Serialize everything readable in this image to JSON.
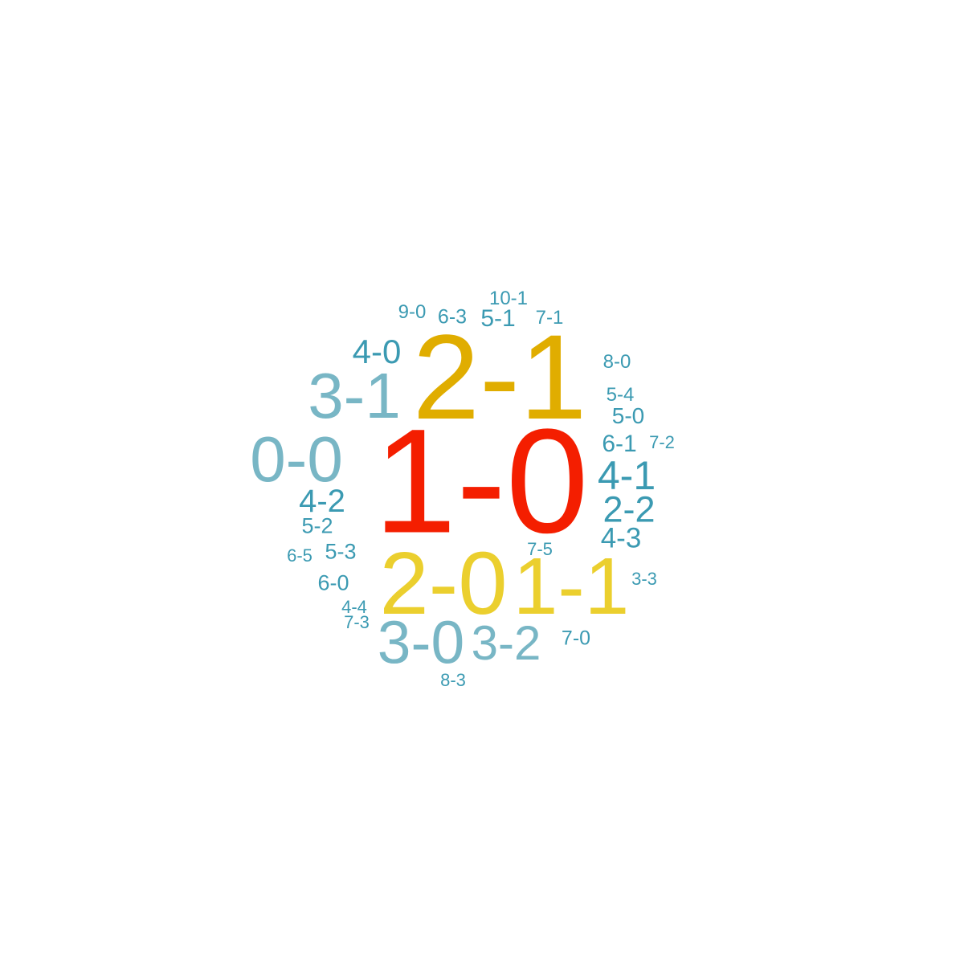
{
  "palette": {
    "red": "#f41e00",
    "gold": "#e0ad00",
    "yellow": "#ebcf2e",
    "light_blue": "#78b6c5",
    "teal": "#3b9ab2"
  },
  "words": [
    {
      "text": "1-0",
      "color": "red"
    },
    {
      "text": "2-1",
      "color": "gold"
    },
    {
      "text": "2-0",
      "color": "yellow"
    },
    {
      "text": "1-1",
      "color": "yellow"
    },
    {
      "text": "3-1",
      "color": "light_blue"
    },
    {
      "text": "0-0",
      "color": "light_blue"
    },
    {
      "text": "3-0",
      "color": "light_blue"
    },
    {
      "text": "3-2",
      "color": "light_blue"
    },
    {
      "text": "4-0",
      "color": "teal"
    },
    {
      "text": "4-1",
      "color": "teal"
    },
    {
      "text": "2-2",
      "color": "teal"
    },
    {
      "text": "4-2",
      "color": "teal"
    },
    {
      "text": "4-3",
      "color": "teal"
    },
    {
      "text": "6-1",
      "color": "teal"
    },
    {
      "text": "5-1",
      "color": "teal"
    },
    {
      "text": "5-0",
      "color": "teal"
    },
    {
      "text": "5-2",
      "color": "teal"
    },
    {
      "text": "5-3",
      "color": "teal"
    },
    {
      "text": "6-0",
      "color": "teal"
    },
    {
      "text": "7-0",
      "color": "teal"
    },
    {
      "text": "6-3",
      "color": "teal"
    },
    {
      "text": "5-4",
      "color": "teal"
    },
    {
      "text": "9-0",
      "color": "teal"
    },
    {
      "text": "10-1",
      "color": "teal"
    },
    {
      "text": "7-1",
      "color": "teal"
    },
    {
      "text": "8-0",
      "color": "teal"
    },
    {
      "text": "7-2",
      "color": "teal"
    },
    {
      "text": "3-3",
      "color": "teal"
    },
    {
      "text": "7-5",
      "color": "teal"
    },
    {
      "text": "6-5",
      "color": "teal"
    },
    {
      "text": "4-4",
      "color": "teal"
    },
    {
      "text": "7-3",
      "color": "teal"
    },
    {
      "text": "8-3",
      "color": "teal"
    }
  ]
}
